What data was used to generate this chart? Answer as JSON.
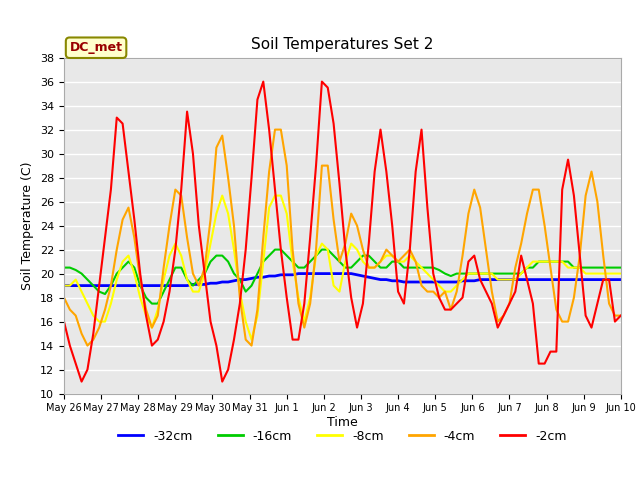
{
  "title": "Soil Temperatures Set 2",
  "xlabel": "Time",
  "ylabel": "Soil Temperature (C)",
  "ylim": [
    10,
    38
  ],
  "yticks": [
    10,
    12,
    14,
    16,
    18,
    20,
    22,
    24,
    26,
    28,
    30,
    32,
    34,
    36,
    38
  ],
  "annotation": "DC_met",
  "fig_bg_color": "#ffffff",
  "plot_bg_color": "#e8e8e8",
  "legend_labels": [
    "-32cm",
    "-16cm",
    "-8cm",
    "-4cm",
    "-2cm"
  ],
  "legend_colors": [
    "blue",
    "#00cc00",
    "yellow",
    "orange",
    "red"
  ],
  "x_labels": [
    "May 26",
    "May 27",
    "May 28",
    "May 29",
    "May 30",
    "May 31",
    "Jun 1",
    "Jun 2",
    "Jun 3",
    "Jun 4",
    "Jun 5",
    "Jun 6",
    "Jun 7",
    "Jun 8",
    "Jun 9",
    "Jun 10"
  ],
  "depth_32cm": [
    19.0,
    19.0,
    19.0,
    19.0,
    19.0,
    19.0,
    19.0,
    19.0,
    19.0,
    19.0,
    19.0,
    19.0,
    19.0,
    19.0,
    19.0,
    19.0,
    19.0,
    19.0,
    19.0,
    19.0,
    19.0,
    19.0,
    19.1,
    19.1,
    19.1,
    19.2,
    19.2,
    19.3,
    19.3,
    19.4,
    19.5,
    19.5,
    19.6,
    19.7,
    19.7,
    19.8,
    19.8,
    19.9,
    19.9,
    19.9,
    20.0,
    20.0,
    20.0,
    20.0,
    20.0,
    20.0,
    20.0,
    20.0,
    20.0,
    20.0,
    19.9,
    19.8,
    19.7,
    19.6,
    19.5,
    19.5,
    19.4,
    19.4,
    19.3,
    19.3,
    19.3,
    19.3,
    19.3,
    19.3,
    19.3,
    19.3,
    19.3,
    19.3,
    19.4,
    19.4,
    19.4,
    19.5,
    19.5,
    19.5,
    19.5,
    19.5,
    19.5,
    19.5,
    19.5,
    19.5,
    19.5,
    19.5,
    19.5,
    19.5,
    19.5,
    19.5,
    19.5,
    19.5,
    19.5,
    19.5,
    19.5,
    19.5,
    19.5,
    19.5,
    19.5,
    19.5
  ],
  "depth_16cm": [
    20.5,
    20.5,
    20.3,
    20.0,
    19.5,
    19.0,
    18.5,
    18.3,
    19.0,
    20.0,
    20.5,
    21.0,
    20.5,
    19.0,
    18.0,
    17.5,
    17.5,
    18.5,
    19.5,
    20.5,
    20.5,
    19.5,
    19.0,
    19.5,
    20.0,
    21.0,
    21.5,
    21.5,
    21.0,
    20.0,
    19.5,
    18.5,
    19.0,
    20.0,
    21.0,
    21.5,
    22.0,
    22.0,
    21.5,
    21.0,
    20.5,
    20.5,
    21.0,
    21.5,
    22.0,
    22.0,
    21.5,
    21.0,
    20.5,
    20.5,
    21.0,
    21.5,
    21.5,
    21.0,
    20.5,
    20.5,
    21.0,
    21.0,
    20.5,
    20.5,
    20.5,
    20.5,
    20.5,
    20.5,
    20.3,
    20.0,
    19.8,
    20.0,
    20.0,
    20.0,
    20.0,
    20.0,
    20.0,
    20.0,
    20.0,
    20.0,
    20.0,
    20.0,
    20.0,
    20.5,
    20.5,
    21.0,
    21.0,
    21.0,
    21.0,
    21.0,
    21.0,
    20.5,
    20.5,
    20.5,
    20.5,
    20.5,
    20.5,
    20.5,
    20.5,
    20.5
  ],
  "depth_8cm": [
    19.0,
    19.0,
    19.5,
    18.5,
    17.5,
    16.5,
    16.0,
    16.0,
    17.5,
    19.5,
    21.0,
    21.5,
    20.0,
    18.0,
    16.5,
    15.5,
    17.0,
    19.5,
    21.5,
    22.5,
    21.5,
    19.5,
    18.5,
    18.5,
    20.0,
    22.5,
    25.0,
    26.5,
    25.0,
    22.0,
    18.5,
    16.0,
    14.5,
    16.5,
    21.0,
    25.5,
    26.5,
    26.5,
    25.0,
    21.0,
    18.0,
    16.0,
    18.0,
    21.5,
    22.5,
    22.0,
    19.0,
    18.5,
    21.0,
    22.5,
    22.0,
    21.0,
    20.5,
    20.5,
    21.0,
    21.5,
    21.5,
    21.0,
    21.0,
    21.5,
    21.0,
    20.5,
    20.0,
    19.5,
    19.0,
    18.5,
    18.5,
    19.0,
    19.5,
    20.0,
    20.0,
    20.0,
    20.0,
    20.0,
    19.5,
    19.5,
    19.5,
    19.5,
    20.0,
    20.5,
    21.0,
    21.0,
    21.0,
    21.0,
    21.0,
    21.0,
    20.5,
    20.5,
    20.5,
    20.0,
    20.0,
    20.0,
    20.0,
    20.0,
    20.0,
    20.0
  ],
  "depth_4cm": [
    18.0,
    17.0,
    16.5,
    15.0,
    14.0,
    14.5,
    15.5,
    17.0,
    19.0,
    22.0,
    24.5,
    25.5,
    23.0,
    19.5,
    17.0,
    15.5,
    16.5,
    20.5,
    24.0,
    27.0,
    26.5,
    23.0,
    20.0,
    19.0,
    20.5,
    24.5,
    30.5,
    31.5,
    28.0,
    24.0,
    18.0,
    14.5,
    14.0,
    17.0,
    23.0,
    28.5,
    32.0,
    32.0,
    29.0,
    22.0,
    17.5,
    15.5,
    17.5,
    22.0,
    29.0,
    29.0,
    24.5,
    21.0,
    22.5,
    25.0,
    24.0,
    22.0,
    20.5,
    20.5,
    21.0,
    22.0,
    21.5,
    21.0,
    21.5,
    22.0,
    21.0,
    19.0,
    18.5,
    18.5,
    18.0,
    18.5,
    17.0,
    18.5,
    21.5,
    25.0,
    27.0,
    25.5,
    22.0,
    18.5,
    16.0,
    16.5,
    17.5,
    20.5,
    22.5,
    25.0,
    27.0,
    27.0,
    24.0,
    20.5,
    17.0,
    16.0,
    16.0,
    18.0,
    21.5,
    26.5,
    28.5,
    26.0,
    21.5,
    17.5,
    16.5,
    16.5
  ],
  "depth_2cm": [
    16.0,
    14.0,
    12.5,
    11.0,
    12.0,
    15.0,
    19.0,
    23.0,
    27.0,
    33.0,
    32.5,
    28.5,
    24.5,
    20.0,
    16.5,
    14.0,
    14.5,
    16.0,
    18.5,
    22.0,
    27.0,
    33.5,
    30.0,
    24.0,
    20.0,
    16.0,
    14.0,
    11.0,
    12.0,
    14.5,
    17.5,
    22.0,
    28.0,
    34.5,
    36.0,
    32.0,
    27.0,
    22.0,
    18.0,
    14.5,
    14.5,
    17.5,
    23.0,
    29.0,
    36.0,
    35.5,
    32.5,
    27.5,
    22.0,
    18.0,
    15.5,
    17.5,
    22.5,
    28.5,
    32.0,
    28.5,
    24.0,
    18.5,
    17.5,
    22.0,
    28.5,
    32.0,
    25.5,
    20.0,
    18.0,
    17.0,
    17.0,
    17.5,
    18.0,
    21.0,
    21.5,
    19.5,
    18.5,
    17.5,
    15.5,
    16.5,
    17.5,
    18.5,
    21.5,
    19.5,
    17.5,
    12.5,
    12.5,
    13.5,
    13.5,
    27.0,
    29.5,
    26.5,
    21.5,
    16.5,
    15.5,
    17.5,
    19.5,
    19.5,
    16.0,
    16.5
  ]
}
